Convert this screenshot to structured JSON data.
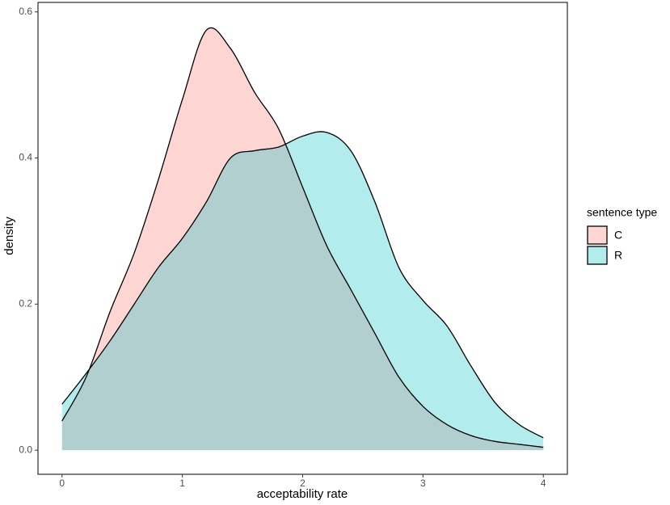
{
  "chart_data": {
    "type": "density",
    "x_label": "acceptability rate",
    "y_label": "density",
    "legend_title": "sentence type",
    "x": [
      0,
      0.2,
      0.4,
      0.6,
      0.8,
      1.0,
      1.2,
      1.4,
      1.6,
      1.8,
      2.0,
      2.2,
      2.4,
      2.6,
      2.8,
      3.0,
      3.2,
      3.4,
      3.6,
      3.8,
      4.0
    ],
    "series": [
      {
        "name": "C",
        "color": "#F8766D",
        "values": [
          0.04,
          0.1,
          0.19,
          0.27,
          0.37,
          0.48,
          0.575,
          0.55,
          0.49,
          0.44,
          0.36,
          0.28,
          0.22,
          0.16,
          0.1,
          0.06,
          0.035,
          0.02,
          0.012,
          0.008,
          0.004
        ]
      },
      {
        "name": "R",
        "color": "#00BFC4",
        "values": [
          0.063,
          0.105,
          0.15,
          0.2,
          0.25,
          0.29,
          0.34,
          0.4,
          0.41,
          0.415,
          0.43,
          0.435,
          0.41,
          0.34,
          0.25,
          0.205,
          0.17,
          0.115,
          0.065,
          0.035,
          0.017
        ]
      }
    ],
    "fill_opacity": 0.3,
    "xlim": [
      -0.2,
      4.2
    ],
    "ylim": [
      -0.033,
      0.613
    ],
    "xticks": [
      0,
      1,
      2,
      3,
      4
    ],
    "yticks": [
      {
        "value": 0,
        "label": "0.0"
      },
      0.2,
      0.4,
      0.6
    ],
    "legend_position": "right"
  }
}
